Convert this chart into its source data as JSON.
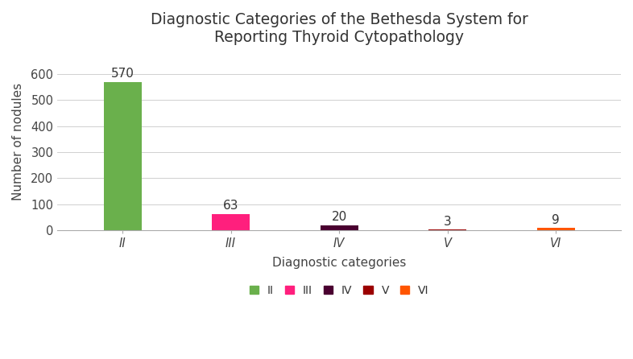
{
  "categories": [
    "II",
    "III",
    "IV",
    "V",
    "VI"
  ],
  "values": [
    570,
    63,
    20,
    3,
    9
  ],
  "bar_colors": [
    "#6ab04c",
    "#ff1f7d",
    "#4a0030",
    "#9b0000",
    "#ff5500"
  ],
  "legend_colors": [
    "#6ab04c",
    "#ff1f7d",
    "#4a0030",
    "#9b0000",
    "#ff5500"
  ],
  "legend_labels": [
    "II",
    "III",
    "IV",
    "V",
    "VI"
  ],
  "title_line1": "Diagnostic Categories of the Bethesda System for",
  "title_line2": "Reporting Thyroid Cytopathology",
  "xlabel": "Diagnostic categories",
  "ylabel": "Number of nodules",
  "ylim": [
    0,
    680
  ],
  "yticks": [
    0,
    100,
    200,
    300,
    400,
    500,
    600
  ],
  "background_color": "#ffffff",
  "grid_color": "#d0d0d0",
  "title_fontsize": 13.5,
  "label_fontsize": 11,
  "tick_fontsize": 10.5,
  "annotation_fontsize": 11
}
